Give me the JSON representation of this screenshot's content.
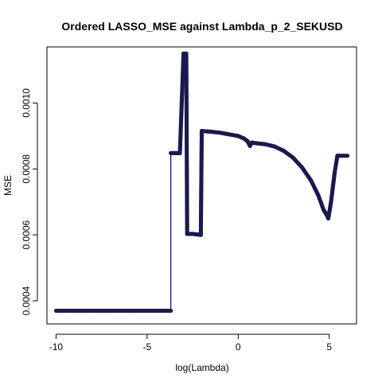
{
  "chart_data": {
    "type": "line",
    "title": "Ordered LASSO_MSE against Lambda_p_2_SEKUSD",
    "xlabel": "log(Lambda)",
    "ylabel": "MSE",
    "xlim": [
      -10.5,
      6.5
    ],
    "ylim": [
      0.00033,
      0.00117
    ],
    "x_ticks": [
      -10,
      -5,
      0,
      5
    ],
    "x_tick_labels": [
      "-10",
      "-5",
      "0",
      "5"
    ],
    "y_ticks": [
      0.0004,
      0.0006,
      0.0008,
      0.001
    ],
    "y_tick_labels": [
      "0.0004",
      "0.0006",
      "0.0008",
      "0.0010"
    ],
    "marker": "filled-circle",
    "line_color": "#000080",
    "point_color": "#1a1a4e",
    "grid": false,
    "series": [
      {
        "points": [
          [
            -10.0,
            0.00037
          ],
          [
            -9.0,
            0.00037
          ],
          [
            -8.0,
            0.00037
          ],
          [
            -7.0,
            0.00037
          ],
          [
            -6.0,
            0.00037
          ],
          [
            -5.0,
            0.00037
          ],
          [
            -4.0,
            0.00037
          ],
          [
            -3.7,
            0.00037
          ],
          [
            -3.7,
            0.000848
          ],
          [
            -3.5,
            0.000848
          ],
          [
            -3.2,
            0.000848
          ],
          [
            -3.0,
            0.00115
          ],
          [
            -2.85,
            0.00115
          ],
          [
            -2.8,
            0.000603
          ],
          [
            -2.5,
            0.000603
          ],
          [
            -2.2,
            0.000601
          ],
          [
            -2.05,
            0.0006
          ],
          [
            -2.0,
            0.000915
          ],
          [
            -1.5,
            0.000913
          ],
          [
            -1.0,
            0.00091
          ],
          [
            -0.5,
            0.000905
          ],
          [
            0.0,
            0.0009
          ],
          [
            0.3,
            0.000893
          ],
          [
            0.5,
            0.000885
          ],
          [
            0.65,
            0.00087
          ],
          [
            0.75,
            0.00088
          ],
          [
            1.0,
            0.000878
          ],
          [
            1.5,
            0.000875
          ],
          [
            2.0,
            0.000868
          ],
          [
            2.5,
            0.000855
          ],
          [
            3.0,
            0.000835
          ],
          [
            3.5,
            0.000805
          ],
          [
            4.0,
            0.000765
          ],
          [
            4.4,
            0.00072
          ],
          [
            4.7,
            0.000675
          ],
          [
            4.85,
            0.000662
          ],
          [
            4.95,
            0.00065
          ],
          [
            5.1,
            0.0007
          ],
          [
            5.3,
            0.00079
          ],
          [
            5.45,
            0.00084
          ],
          [
            5.5,
            0.00084
          ],
          [
            6.0,
            0.00084
          ]
        ]
      }
    ]
  }
}
